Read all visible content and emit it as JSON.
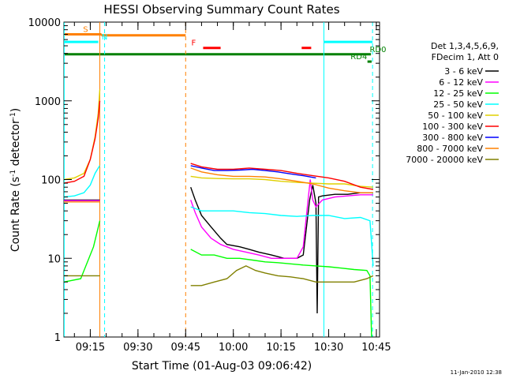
{
  "chart_data": {
    "type": "line",
    "title": "HESSI Observing Summary Count Rates",
    "xlabel": "Start Time (01-Aug-03 09:06:42)",
    "ylabel_parts": [
      "Count Rate (s",
      "-1",
      " detector",
      "-1",
      ")"
    ],
    "y_scale": "log",
    "ylim": [
      1,
      10000
    ],
    "xlim_minutes": [
      546.7,
      646.0
    ],
    "y_ticks": [
      {
        "value": 1,
        "label": "1"
      },
      {
        "value": 10,
        "label": "10"
      },
      {
        "value": 100,
        "label": "100"
      },
      {
        "value": 1000,
        "label": "1000"
      },
      {
        "value": 10000,
        "label": "10000"
      }
    ],
    "x_ticks": [
      {
        "minute": 555,
        "label": "09:15"
      },
      {
        "minute": 570,
        "label": "09:30"
      },
      {
        "minute": 585,
        "label": "09:45"
      },
      {
        "minute": 600,
        "label": "10:00"
      },
      {
        "minute": 615,
        "label": "10:15"
      },
      {
        "minute": 630,
        "label": "10:30"
      },
      {
        "minute": 645,
        "label": "10:45"
      }
    ],
    "legend_title": [
      "Det 1,3,4,5,6,9,",
      "FDecim 1, Att 0"
    ],
    "grid": false,
    "legend_position": "right",
    "series": [
      {
        "name": "3 - 6 keV",
        "color": "#000000",
        "points": [
          [
            546.7,
            55
          ],
          [
            558,
            55
          ],
          [
            558.1,
            null
          ],
          [
            586.5,
            null
          ],
          [
            586.6,
            80
          ],
          [
            588,
            55
          ],
          [
            590,
            35
          ],
          [
            593,
            25
          ],
          [
            596,
            18
          ],
          [
            598,
            15
          ],
          [
            602,
            14
          ],
          [
            605,
            13
          ],
          [
            608,
            12
          ],
          [
            612,
            11
          ],
          [
            616,
            10
          ],
          [
            620,
            10
          ],
          [
            622,
            11
          ],
          [
            624,
            55
          ],
          [
            625,
            85
          ],
          [
            626,
            50
          ],
          [
            626.4,
            2
          ],
          [
            626.8,
            60
          ],
          [
            628,
            62
          ],
          [
            632,
            65
          ],
          [
            636,
            65
          ],
          [
            640,
            68
          ],
          [
            644,
            68
          ]
        ]
      },
      {
        "name": "6 - 12 keV",
        "color": "#ff00ff",
        "points": [
          [
            546.7,
            54
          ],
          [
            558,
            54
          ],
          [
            558.1,
            null
          ],
          [
            586.5,
            null
          ],
          [
            586.6,
            55
          ],
          [
            588,
            38
          ],
          [
            590,
            25
          ],
          [
            593,
            18
          ],
          [
            596,
            15
          ],
          [
            600,
            13
          ],
          [
            604,
            12
          ],
          [
            608,
            11
          ],
          [
            612,
            10
          ],
          [
            616,
            10
          ],
          [
            620,
            10
          ],
          [
            622,
            14
          ],
          [
            623.5,
            55
          ],
          [
            624.2,
            100
          ],
          [
            625,
            55
          ],
          [
            626,
            45
          ],
          [
            628,
            55
          ],
          [
            632,
            60
          ],
          [
            636,
            62
          ],
          [
            640,
            64
          ],
          [
            644,
            64
          ]
        ]
      },
      {
        "name": "12 - 25 keV",
        "color": "#00ff00",
        "points": [
          [
            546.7,
            5
          ],
          [
            552,
            5.5
          ],
          [
            556,
            14
          ],
          [
            558,
            30
          ],
          [
            558.1,
            null
          ],
          [
            586.5,
            null
          ],
          [
            586.6,
            13
          ],
          [
            590,
            11
          ],
          [
            594,
            11
          ],
          [
            598,
            10
          ],
          [
            602,
            10
          ],
          [
            606,
            9.5
          ],
          [
            610,
            9
          ],
          [
            614,
            8.8
          ],
          [
            618,
            8.5
          ],
          [
            622,
            8.2
          ],
          [
            626,
            8
          ],
          [
            630,
            7.8
          ],
          [
            634,
            7.5
          ],
          [
            638,
            7.2
          ],
          [
            642,
            7
          ],
          [
            643,
            6
          ],
          [
            643.5,
            1
          ]
        ]
      },
      {
        "name": "25 - 50 keV",
        "color": "#00ffff",
        "points": [
          [
            546.7,
            60
          ],
          [
            550,
            62
          ],
          [
            553,
            68
          ],
          [
            555,
            85
          ],
          [
            556.5,
            120
          ],
          [
            557.5,
            140
          ],
          [
            558,
            150
          ],
          [
            558.1,
            null
          ],
          [
            586.5,
            null
          ],
          [
            586.6,
            45
          ],
          [
            590,
            40
          ],
          [
            595,
            40
          ],
          [
            600,
            40
          ],
          [
            605,
            38
          ],
          [
            610,
            37
          ],
          [
            615,
            35
          ],
          [
            620,
            34
          ],
          [
            625,
            35
          ],
          [
            630,
            35
          ],
          [
            635,
            32
          ],
          [
            640,
            33
          ],
          [
            643,
            30
          ],
          [
            644,
            8
          ]
        ]
      },
      {
        "name": "50 - 100 keV",
        "color": "#e0d000",
        "points": [
          [
            546.7,
            100
          ],
          [
            550,
            105
          ],
          [
            553,
            120
          ],
          [
            555,
            180
          ],
          [
            556.5,
            350
          ],
          [
            557.5,
            700
          ],
          [
            558,
            1400
          ],
          [
            558.1,
            null
          ],
          [
            586.5,
            null
          ],
          [
            586.6,
            110
          ],
          [
            590,
            105
          ],
          [
            595,
            103
          ],
          [
            600,
            102
          ],
          [
            605,
            102
          ],
          [
            610,
            100
          ],
          [
            615,
            95
          ],
          [
            620,
            92
          ],
          [
            625,
            90
          ],
          [
            630,
            88
          ],
          [
            635,
            88
          ],
          [
            640,
            82
          ],
          [
            644,
            80
          ]
        ]
      },
      {
        "name": "100 - 300 keV",
        "color": "#ff0000",
        "points": [
          [
            546.7,
            90
          ],
          [
            550,
            95
          ],
          [
            553,
            110
          ],
          [
            555,
            180
          ],
          [
            556.5,
            330
          ],
          [
            557.5,
            600
          ],
          [
            558,
            1000
          ],
          [
            558.1,
            null
          ],
          [
            586.5,
            null
          ],
          [
            586.6,
            160
          ],
          [
            590,
            145
          ],
          [
            595,
            135
          ],
          [
            600,
            135
          ],
          [
            605,
            140
          ],
          [
            610,
            135
          ],
          [
            615,
            130
          ],
          [
            620,
            120
          ],
          [
            625,
            112
          ],
          [
            630,
            105
          ],
          [
            635,
            95
          ],
          [
            640,
            80
          ],
          [
            644,
            75
          ]
        ]
      },
      {
        "name": "300 - 800 keV",
        "color": "#0000ff",
        "points": [
          [
            586.6,
            150
          ],
          [
            590,
            140
          ],
          [
            594,
            130
          ],
          [
            598,
            130
          ],
          [
            602,
            132
          ],
          [
            606,
            135
          ],
          [
            610,
            130
          ],
          [
            614,
            125
          ],
          [
            618,
            118
          ],
          [
            622,
            112
          ],
          [
            626,
            105
          ]
        ]
      },
      {
        "name": "800 - 7000 keV",
        "color": "#ff8000",
        "points": [
          [
            546.7,
            52
          ],
          [
            558,
            52
          ],
          [
            558.1,
            null
          ],
          [
            586.5,
            null
          ],
          [
            586.6,
            140
          ],
          [
            590,
            125
          ],
          [
            595,
            115
          ],
          [
            600,
            110
          ],
          [
            605,
            110
          ],
          [
            610,
            108
          ],
          [
            615,
            102
          ],
          [
            620,
            95
          ],
          [
            625,
            88
          ],
          [
            630,
            78
          ],
          [
            635,
            72
          ],
          [
            640,
            68
          ],
          [
            644,
            68
          ]
        ]
      },
      {
        "name": "7000 - 20000 keV",
        "color": "#808000",
        "points": [
          [
            546.7,
            6
          ],
          [
            558,
            6
          ],
          [
            558.1,
            null
          ],
          [
            586.5,
            null
          ],
          [
            586.6,
            4.5
          ],
          [
            590,
            4.5
          ],
          [
            594,
            5
          ],
          [
            598,
            5.5
          ],
          [
            601,
            7
          ],
          [
            604,
            8
          ],
          [
            607,
            7
          ],
          [
            610,
            6.5
          ],
          [
            614,
            6
          ],
          [
            618,
            5.8
          ],
          [
            622,
            5.5
          ],
          [
            626,
            5
          ],
          [
            630,
            5
          ],
          [
            634,
            5
          ],
          [
            638,
            5
          ],
          [
            642,
            5.5
          ],
          [
            644,
            6
          ]
        ]
      }
    ],
    "flag_bars": [
      {
        "label": "S",
        "color": "#ff8000",
        "y": 7000,
        "x_start": 546.7,
        "x_end": 558.5,
        "label_at": 553.5
      },
      {
        "label": "",
        "color": "#ff8000",
        "y": 6800,
        "x_start": 558.5,
        "x_end": 585.0
      },
      {
        "label": "N",
        "color": "#00ffff",
        "y": 5600,
        "x_start": 546.7,
        "x_end": 557.5,
        "label_at": 559.5
      },
      {
        "label": "N",
        "color": "#00ffff",
        "y": 5600,
        "x_start": 628.5,
        "x_end": 643.8
      },
      {
        "label": "F",
        "color": "#ff0000",
        "y": 4700,
        "x_start": 590.5,
        "x_end": 596.0,
        "label_at": 587.5
      },
      {
        "label": "",
        "color": "#ff0000",
        "y": 4700,
        "x_start": 621.5,
        "x_end": 624.5
      },
      {
        "label": "RD0",
        "color": "#008000",
        "y": 3900,
        "x_start": 546.7,
        "x_end": 643.3,
        "label_at": 645.5
      },
      {
        "label": "RD4",
        "color": "#008000",
        "y": 3150,
        "x_start": 642.2,
        "x_end": 643.5,
        "label_at": 639.5
      }
    ],
    "vertical_markers": [
      {
        "minute": 546.8,
        "color": "#00ffff",
        "style": "solid"
      },
      {
        "minute": 558.0,
        "color": "#ff8000",
        "style": "solid"
      },
      {
        "minute": 559.5,
        "color": "#00ffff",
        "style": "dashed"
      },
      {
        "minute": 585.0,
        "color": "#ff8000",
        "style": "dashed"
      },
      {
        "minute": 628.5,
        "color": "#00ffff",
        "style": "solid"
      },
      {
        "minute": 643.8,
        "color": "#00ffff",
        "style": "dashed"
      }
    ]
  },
  "footer": {
    "timestamp": "11-Jan-2010 12:38"
  }
}
